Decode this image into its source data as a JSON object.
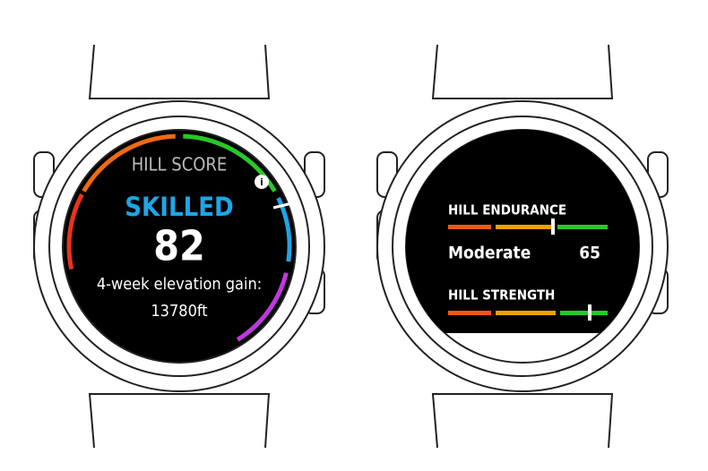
{
  "left_watch": {
    "title": "HILL SCORE",
    "level": "SKILLED",
    "score": 82,
    "gain_label": "4-week elevation gain:",
    "gain_value": "13780ft"
  },
  "right_watch": {
    "endurance_title": "HILL ENDURANCE",
    "endurance_level": "Moderate",
    "endurance_value": 65,
    "strength_title": "HILL STRENGTH"
  }
}
